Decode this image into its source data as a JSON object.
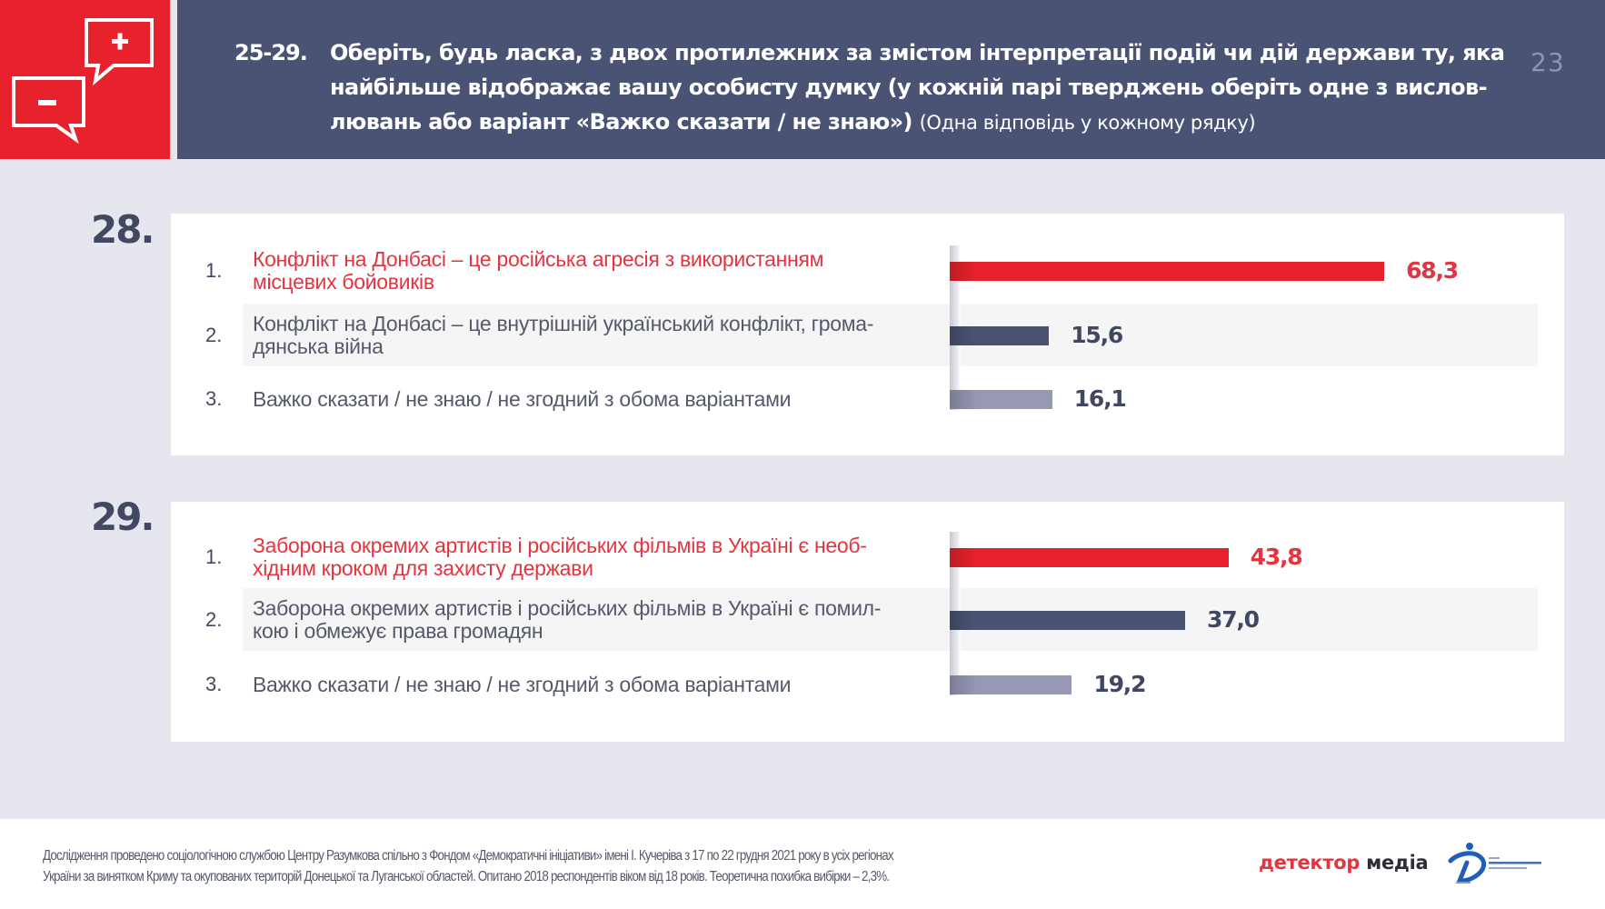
{
  "header": {
    "question_range": "25-29.",
    "title_lines": [
      "Оберіть, будь ласка, з двох протилежних за змістом інтерпретації подій чи дій  держави ту, яка",
      "найбільше відображає вашу особисту думку (у кожній парі тверджень оберіть одне з вислов-",
      "лювань або варіант «Важко сказати / не знаю»)"
    ],
    "title_note": "(Одна відповідь у кожному рядку)",
    "page_number": "23",
    "icon": "plus-minus-speech-bubbles-icon"
  },
  "colors": {
    "accent_red": "#e8222d",
    "navy": "#4a5374",
    "bar_option_1": "#e8222d",
    "bar_option_2": "#4a5374",
    "bar_option_3": "#9698b4"
  },
  "chart_data": [
    {
      "type": "bar",
      "orientation": "horizontal",
      "title": "28.",
      "categories": [
        "Конфлікт на Донбасі – це російська агресія з використанням місцевих бойовиків",
        "Конфлікт на Донбасі – це внутрішній український конфлікт, громадянська війна",
        "Важко сказати / не знаю / не згодний з обома варіантами"
      ],
      "numbers": [
        "1.",
        "2.",
        "3."
      ],
      "label_lines": [
        [
          "Конфлікт на Донбасі – це російська агресія з використанням",
          "місцевих бойовиків"
        ],
        [
          "Конфлікт на Донбасі – це внутрішній український конфлікт, грома-",
          "дянська війна"
        ],
        [
          "Важко сказати / не знаю / не згодний з обома варіантами"
        ]
      ],
      "values": [
        68.3,
        15.6,
        16.1
      ],
      "value_labels": [
        "68,3",
        "15,6",
        "16,1"
      ],
      "unit": "%",
      "xlim": [
        0,
        100
      ],
      "grid": false
    },
    {
      "type": "bar",
      "orientation": "horizontal",
      "title": "29.",
      "categories": [
        "Заборона окремих артистів і російських фільмів в Україні є необхідним кроком для захисту держави",
        "Заборона окремих артистів і російських фільмів в Україні є помилкою і обмежує права громадян",
        "Важко сказати / не знаю / не згодний з обома варіантами"
      ],
      "numbers": [
        "1.",
        "2.",
        "3."
      ],
      "label_lines": [
        [
          "Заборона окремих артистів і російських фільмів в Україні є необ-",
          "хідним кроком для захисту держави"
        ],
        [
          "Заборона окремих артистів і російських фільмів в Україні є помил-",
          "кою і обмежує права громадян"
        ],
        [
          "Важко сказати / не знаю / не згодний з обома варіантами"
        ]
      ],
      "values": [
        43.8,
        37.0,
        19.2
      ],
      "value_labels": [
        "43,8",
        "37,0",
        "19,2"
      ],
      "unit": "%",
      "xlim": [
        0,
        100
      ],
      "grid": false
    }
  ],
  "footer": {
    "lines": [
      "Дослідження проведено соціологічною службою Центру Разумкова спільно з Фондом «Демократичні ініціативи» імені І. Кучеріва  з 17 по 22 грудня 2021 року в усіх регіонах",
      "України за винятком Криму та окупованих територій Донецької та Луганської областей. Опитано 2018 респондентів віком від 18 років. Теоретична похибка вибірки – 2,3%."
    ],
    "logo_detector_part1": "детектор",
    "logo_detector_part2": "медіа",
    "logo_di": "democratic-initiatives-foundation-logo"
  }
}
